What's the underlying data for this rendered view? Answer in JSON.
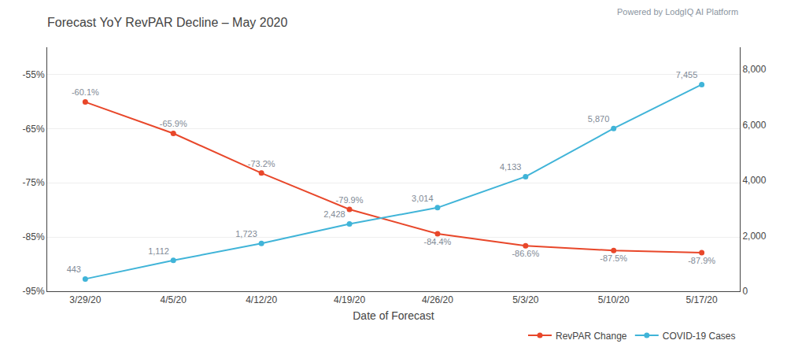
{
  "chart_data": {
    "type": "line",
    "title": "Forecast YoY RevPAR Decline – May 2020",
    "subtitle": "Powered by LodgIQ AI Platform",
    "xlabel": "Date of Forecast",
    "categories": [
      "3/29/20",
      "4/5/20",
      "4/12/20",
      "4/19/20",
      "4/26/20",
      "5/3/20",
      "5/10/20",
      "5/17/20"
    ],
    "series": [
      {
        "name": "RevPAR Change",
        "color": "#E8472A",
        "marker": "circle",
        "axis": "y",
        "values": [
          -60.1,
          -65.9,
          -73.2,
          -79.9,
          -84.4,
          -86.6,
          -87.5,
          -87.9
        ],
        "value_labels": [
          "-60.1%",
          "-65.9%",
          "-73.2%",
          "-79.9%",
          "-84.4%",
          "-86.6%",
          "-87.5%",
          "-87.9%"
        ]
      },
      {
        "name": "COVID-19 Cases",
        "color": "#40B4D8",
        "marker": "circle",
        "axis": "y2",
        "values": [
          443,
          1112,
          1723,
          2428,
          3014,
          4133,
          5870,
          7455
        ],
        "value_labels": [
          "443",
          "1,112",
          "1,723",
          "2,428",
          "3,014",
          "4,133",
          "5,870",
          "7,455"
        ]
      }
    ],
    "ylim": [
      -95,
      -50
    ],
    "yticks": [
      {
        "value": -95,
        "label": "-95%"
      },
      {
        "value": -85,
        "label": "-85%"
      },
      {
        "value": -75,
        "label": "-75%"
      },
      {
        "value": -65,
        "label": "-65%"
      },
      {
        "value": -55,
        "label": "-55%"
      }
    ],
    "y2lim": [
      0,
      8800
    ],
    "y2ticks": [
      0,
      {
        "value": 2000,
        "label": "2,000"
      },
      {
        "value": 4000,
        "label": "4,000"
      },
      {
        "value": 6000,
        "label": "6,000"
      },
      {
        "value": 8000,
        "label": "8,000"
      }
    ],
    "grid": true,
    "legend": "lower right",
    "data_labels": true
  }
}
